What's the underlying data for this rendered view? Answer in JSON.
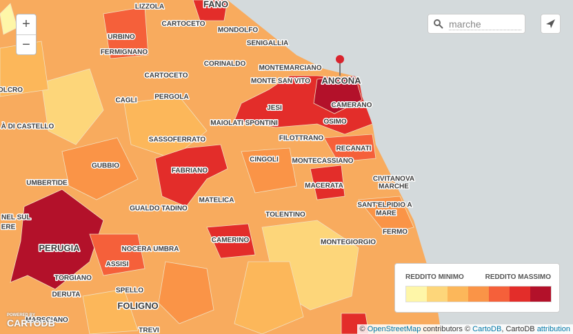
{
  "search": {
    "query": "marche"
  },
  "zoom": {
    "in": "+",
    "out": "−"
  },
  "labels": [
    "LIZZOLA",
    "FANO",
    "CARTOCETO",
    "MONDOLFO",
    "URBINO",
    "SENIGALLIA",
    "FERMIGNANO",
    "CORINALDO",
    "MONTEMARCIANO",
    "CARTOCETO",
    "ANCONA",
    "MONTE SAN VITO",
    "OLCRO",
    "CAGLI",
    "PERGOLA",
    "JESI",
    "CAMERANO",
    "MAIOLATI SPONTINI",
    "OSIMO",
    "À DI CASTELLO",
    "SASSOFERRATO",
    "FILOTTRANO",
    "RECANATI",
    "CINGOLI",
    "MONTECASSIANO",
    "GUBBIO",
    "FABRIANO",
    "CIVITANOVA",
    "MARCHE",
    "UMBERTIDE",
    "MACERATA",
    "MATELICA",
    "SANT'ELPIDIO A",
    "MARE",
    "GUALDO TADINO",
    "TOLENTINO",
    "O NEL SUL",
    "ERE",
    "FERMO",
    "CAMERINO",
    "MONTEGIORGIO",
    "PERUGIA",
    "NOCERA UMBRA",
    "ASSISI",
    "TORGIANO",
    "SPELLO",
    "DERUTA",
    "FOLIGNO",
    "MARSCIANO",
    "TREVI"
  ],
  "legend": {
    "min_label": "REDDITO MINIMO",
    "max_label": "REDDITO MASSIMO",
    "colors": [
      "#fef6a8",
      "#fdd67a",
      "#fcb75a",
      "#fa9447",
      "#f5603a",
      "#e32d2a",
      "#b3112a"
    ]
  },
  "attribution": {
    "prefix": "©",
    "osm": "OpenStreetMap",
    "contributors": "contributors ©",
    "cartodb": "CartoDB",
    "sep": ", CartoDB",
    "link": "attribution"
  },
  "logo": {
    "powered": "POWERED BY",
    "name": "CARTODB"
  }
}
